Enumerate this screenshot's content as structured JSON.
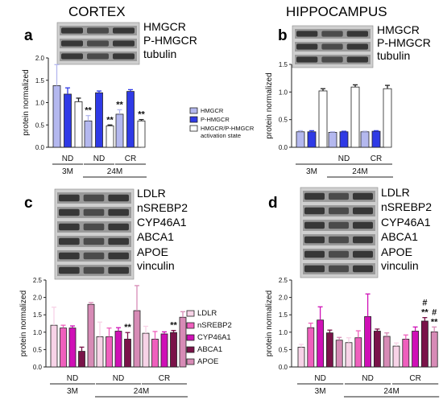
{
  "colors": {
    "hmgcr": "#b4b8ef",
    "phmgcr": "#2f3ae6",
    "activation": "#ffffff",
    "ldlr": "#f7d3e7",
    "nsrebp2": "#ef5fbd",
    "cyp46a1": "#cf10b6",
    "abca1": "#7a1349",
    "apoe": "#d78bb6",
    "blot_bg": "#8a8a8a"
  },
  "panels": [
    {
      "letter": "a",
      "region": "CORTEX",
      "blot_labels": [
        "HMGCR",
        "P-HMGCR",
        "tubulin"
      ]
    },
    {
      "letter": "b",
      "region": "HIPPOCAMPUS",
      "blot_labels": [
        "HMGCR",
        "P-HMGCR",
        "tubulin"
      ]
    },
    {
      "letter": "c",
      "region": "",
      "blot_labels": [
        "LDLR",
        "nSREBP2",
        "CYP46A1",
        "ABCA1",
        "APOE",
        "vinculin"
      ]
    },
    {
      "letter": "d",
      "region": "",
      "blot_labels": [
        "LDLR",
        "nSREBP2",
        "CYP46A1",
        "ABCA1",
        "APOE",
        "vinculin"
      ]
    }
  ],
  "chart_data": [
    {
      "type": "bar",
      "panel": "a",
      "ylabel": "protein normalized",
      "ylim": [
        0,
        2.0
      ],
      "yticks": [
        "0.0",
        "0.5",
        "1.0",
        "1.5",
        "2.0"
      ],
      "groups": [
        "ND",
        "ND",
        "CR"
      ],
      "ages": [
        "3M",
        "24M"
      ],
      "legend": [
        "HMGCR",
        "P-HMGCR",
        "HMGCR/P-HMGCR activation state"
      ],
      "series": [
        {
          "name": "HMGCR",
          "values": [
            1.38,
            0.59,
            0.74
          ],
          "errors": [
            0.47,
            0.12,
            0.1
          ]
        },
        {
          "name": "P-HMGCR",
          "values": [
            1.19,
            1.22,
            1.25
          ],
          "errors": [
            0.14,
            0.04,
            0.04
          ]
        },
        {
          "name": "HMGCR/P-HMGCR activation state",
          "values": [
            1.02,
            0.48,
            0.59
          ],
          "errors": [
            0.08,
            0.02,
            0.03
          ]
        }
      ],
      "annotations": [
        {
          "series": 0,
          "group": 1,
          "text": "**"
        },
        {
          "series": 2,
          "group": 1,
          "text": "**"
        },
        {
          "series": 0,
          "group": 2,
          "text": "**"
        },
        {
          "series": 2,
          "group": 2,
          "text": "**"
        }
      ]
    },
    {
      "type": "bar",
      "panel": "b",
      "ylabel": "protein normalized",
      "ylim": [
        0,
        1.5
      ],
      "yticks": [
        "0.0",
        "0.5",
        "1.0",
        "1.5"
      ],
      "groups": [
        "",
        "ND",
        "CR"
      ],
      "ages": [
        "3M",
        "24M"
      ],
      "series": [
        {
          "name": "HMGCR",
          "values": [
            0.28,
            0.27,
            0.28
          ],
          "errors": [
            0.02,
            0.01,
            0.01
          ]
        },
        {
          "name": "P-HMGCR",
          "values": [
            0.28,
            0.28,
            0.29
          ],
          "errors": [
            0.02,
            0.01,
            0.01
          ]
        },
        {
          "name": "HMGCR/P-HMGCR activation state",
          "values": [
            1.02,
            1.09,
            1.06
          ],
          "errors": [
            0.04,
            0.04,
            0.06
          ]
        }
      ],
      "annotations": []
    },
    {
      "type": "bar",
      "panel": "c",
      "ylabel": "protein normalized",
      "ylim": [
        0,
        2.5
      ],
      "yticks": [
        "0.0",
        "0.5",
        "1.0",
        "1.5",
        "2.0",
        "2.5"
      ],
      "groups": [
        "ND",
        "ND",
        "CR"
      ],
      "ages": [
        "3M",
        "24M"
      ],
      "legend": [
        "LDLR",
        "nSREBP2",
        "CYP46A1",
        "ABCA1",
        "APOE"
      ],
      "series": [
        {
          "name": "LDLR",
          "values": [
            1.2,
            0.87,
            0.97
          ],
          "errors": [
            0.52,
            0.42,
            0.2
          ]
        },
        {
          "name": "nSREBP2",
          "values": [
            1.12,
            0.87,
            0.8
          ],
          "errors": [
            0.08,
            0.25,
            0.22
          ]
        },
        {
          "name": "CYP46A1",
          "values": [
            1.12,
            1.03,
            0.95
          ],
          "errors": [
            0.06,
            0.1,
            0.06
          ]
        },
        {
          "name": "ABCA1",
          "values": [
            0.45,
            0.8,
            0.99
          ],
          "errors": [
            0.12,
            0.19,
            0.06
          ]
        },
        {
          "name": "APOE",
          "values": [
            1.8,
            1.62,
            1.43
          ],
          "errors": [
            0.05,
            0.72,
            0.16
          ]
        }
      ],
      "annotations": [
        {
          "series": 3,
          "group": 1,
          "text": "**"
        },
        {
          "series": 3,
          "group": 2,
          "text": "**"
        }
      ]
    },
    {
      "type": "bar",
      "panel": "d",
      "ylabel": "protein normalized",
      "ylim": [
        0,
        2.5
      ],
      "yticks": [
        "0.0",
        "0.5",
        "1.0",
        "1.5",
        "2.0",
        "2.5"
      ],
      "groups": [
        "ND",
        "ND",
        "CR"
      ],
      "ages": [
        "3M",
        "24M"
      ],
      "series": [
        {
          "name": "LDLR",
          "values": [
            0.57,
            0.7,
            0.6
          ],
          "errors": [
            0.08,
            0.14,
            0.09
          ]
        },
        {
          "name": "nSREBP2",
          "values": [
            1.13,
            0.84,
            0.8
          ],
          "errors": [
            0.13,
            0.2,
            0.12
          ]
        },
        {
          "name": "CYP46A1",
          "values": [
            1.35,
            1.45,
            1.03
          ],
          "errors": [
            0.38,
            0.65,
            0.12
          ]
        },
        {
          "name": "ABCA1",
          "values": [
            0.98,
            1.03,
            1.32
          ],
          "errors": [
            0.08,
            0.06,
            0.1
          ]
        },
        {
          "name": "APOE",
          "values": [
            0.77,
            0.88,
            1.01
          ],
          "errors": [
            0.08,
            0.1,
            0.14
          ]
        }
      ],
      "annotations": [
        {
          "series": 3,
          "group": 2,
          "text": "**"
        },
        {
          "series": 3,
          "group": 2,
          "text": "#"
        },
        {
          "series": 4,
          "group": 2,
          "text": "**"
        },
        {
          "series": 4,
          "group": 2,
          "text": "#"
        }
      ]
    }
  ]
}
